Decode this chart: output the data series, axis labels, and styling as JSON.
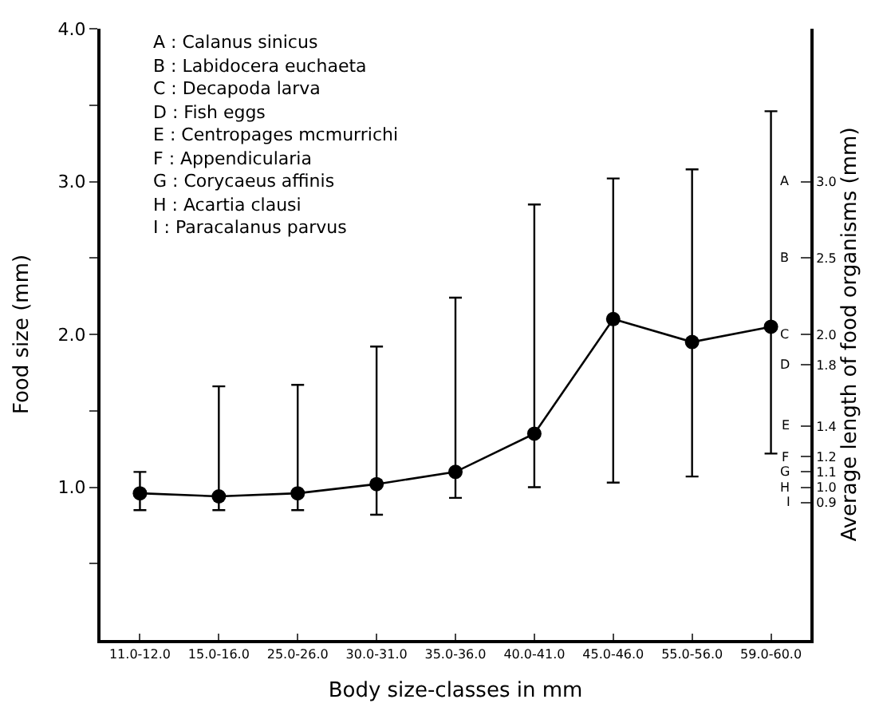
{
  "chart_data": {
    "type": "line",
    "xlabel": "Body size-classes in mm",
    "ylabel": "Food size (mm)",
    "y2label": "Average length of food organisms (mm)",
    "categories": [
      "11.0-12.0",
      "15.0-16.0",
      "25.0-26.0",
      "30.0-31.0",
      "35.0-36.0",
      "40.0-41.0",
      "45.0-46.0",
      "55.0-56.0",
      "59.0-60.0"
    ],
    "series": [
      {
        "color": "#000000",
        "values": [
          0.96,
          0.94,
          0.96,
          1.02,
          1.1,
          1.35,
          2.1,
          1.95,
          2.05
        ],
        "errors": [
          [
            0.85,
            1.1
          ],
          [
            0.85,
            1.66
          ],
          [
            0.85,
            1.67
          ],
          [
            0.82,
            1.92
          ],
          [
            0.93,
            2.24
          ],
          [
            1.0,
            2.85
          ],
          [
            1.03,
            3.02
          ],
          [
            1.07,
            3.08
          ],
          [
            1.22,
            3.46
          ]
        ]
      }
    ],
    "ylim": [
      0,
      4.0
    ],
    "yticks": [
      {
        "value": 0.5,
        "label": null
      },
      {
        "value": 1.0,
        "label": "1.0"
      },
      {
        "value": 1.5,
        "label": null
      },
      {
        "value": 2.0,
        "label": "2.0"
      },
      {
        "value": 2.5,
        "label": null
      },
      {
        "value": 3.0,
        "label": "3.0"
      },
      {
        "value": 3.5,
        "label": null
      },
      {
        "value": 4.0,
        "label": "4.0"
      }
    ],
    "y2lim": [
      0,
      4.0
    ],
    "y2ticks": [
      {
        "value": 3.0,
        "label": "3.0"
      },
      {
        "value": 2.5,
        "label": "2.5"
      },
      {
        "value": 2.0,
        "label": "2.0"
      },
      {
        "value": 1.8,
        "label": "1.8"
      },
      {
        "value": 1.4,
        "label": "1.4"
      },
      {
        "value": 1.2,
        "label": "1.2"
      },
      {
        "value": 1.1,
        "label": "1.1"
      },
      {
        "value": 1.0,
        "label": "1.0"
      },
      {
        "value": 0.9,
        "label": "0.9"
      }
    ],
    "annotations": [
      "A : Calanus sinicus",
      "B : Labidocera euchaeta",
      "C : Decapoda larva",
      "D : Fish eggs",
      "E : Centropages mcmurrichi",
      "F : Appendicularia",
      "G : Corycaeus affinis",
      "H : Acartia clausi",
      "I : Paracalanus parvus",
      "A",
      "B",
      "C",
      "D",
      "E",
      "F",
      "G",
      "H",
      "I"
    ],
    "marker": "circle",
    "line_style": "solid"
  }
}
